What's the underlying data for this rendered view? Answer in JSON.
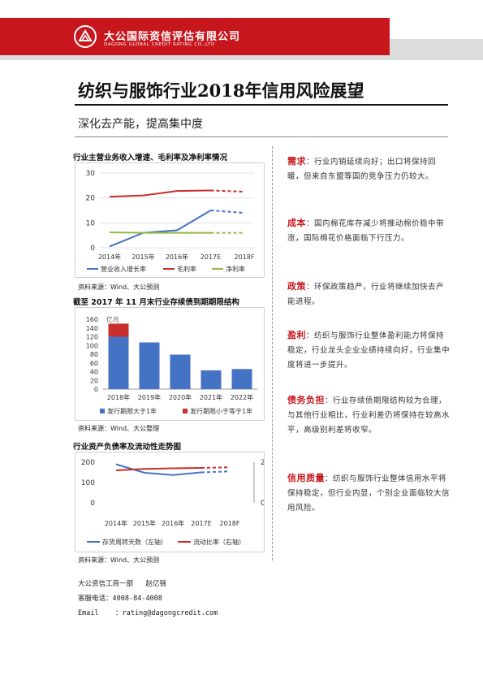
{
  "header": {
    "org_name_cn": "大公国际资信评估有限公司",
    "org_name_en": "DAGONG GLOBAL CREDIT RATING CO.,LTD",
    "brand_color": "#c8161d"
  },
  "title": "纺织与服饰行业2018年信用风险展望",
  "subtitle": "深化去产能，提高集中度",
  "charts": {
    "chart1_title": "行业主营业务收入增速、毛利率及净利率情况",
    "chart1_source": "资料来源：Wind、大公预测",
    "chart2_title": "截至 2017 年 11 月末行业存续债到期期限结构",
    "chart2_unit": "亿元",
    "chart2_source": "资料来源：Wind、大公整理",
    "chart3_title": "行业资产负债率及流动性走势图",
    "chart3_source": "资料来源：Wind、大公预测"
  },
  "chart_data": [
    {
      "type": "line",
      "title": "行业主营业务收入增速、毛利率及净利率情况",
      "categories": [
        "2014年",
        "2015年",
        "2016年",
        "2017E",
        "2018F"
      ],
      "ylim": [
        0,
        30
      ],
      "yticks": [
        "0",
        "10",
        "20",
        "30"
      ],
      "series": [
        {
          "name": "营业收入增长率",
          "values": [
            0.5,
            6,
            7,
            15,
            14
          ],
          "color": "#4472c4"
        },
        {
          "name": "毛利率",
          "values": [
            20.5,
            21,
            22.8,
            23,
            22.5
          ],
          "color": "#c9302c"
        },
        {
          "name": "净利率",
          "values": [
            6.2,
            6,
            6,
            6,
            6
          ],
          "color": "#8fbc3f"
        }
      ]
    },
    {
      "type": "bar",
      "title": "截至 2017 年 11 月末行业存续债到期期限结构",
      "categories": [
        "2018年",
        "2019年",
        "2020年",
        "2021年",
        "2022年"
      ],
      "ylim": [
        0,
        160
      ],
      "yticks": [
        "0",
        "20",
        "40",
        "60",
        "80",
        "100",
        "120",
        "140",
        "160"
      ],
      "series": [
        {
          "name": "发行期限大于1年",
          "values": [
            120,
            107,
            79,
            43,
            46
          ],
          "color": "#4472c4"
        },
        {
          "name": "发行期限小于等于1年",
          "values": [
            30,
            0,
            0,
            0,
            0
          ],
          "color": "#c9302c"
        }
      ]
    },
    {
      "type": "line",
      "title": "行业资产负债率及流动性走势图",
      "categories": [
        "2014年",
        "2015年",
        "2016年",
        "2017E",
        "2018F"
      ],
      "ylim_left": [
        0,
        200
      ],
      "yticks_left": [
        "0",
        "100",
        "200"
      ],
      "ylim_right": [
        0,
        2
      ],
      "yticks_right": [
        "0",
        "2"
      ],
      "series": [
        {
          "name": "存货周转天数（左轴）",
          "axis": "left",
          "values": [
            190,
            148,
            137,
            150,
            155
          ],
          "color": "#4472c4"
        },
        {
          "name": "流动比率（右轴）",
          "axis": "right",
          "values": [
            1.6,
            1.67,
            1.7,
            1.72,
            1.75
          ],
          "color": "#c9302c"
        }
      ]
    }
  ],
  "sidebar": [
    {
      "label": "需求",
      "text": "：行业内销延续向好；出口将保持回暖，但来自东盟等国的竞争压力仍较大。"
    },
    {
      "label": "成本",
      "text": "：国内棉花库存减少将推动棉价稳中带涨，国际棉花价格面临下行压力。"
    },
    {
      "label": "政策",
      "text": "：环保政策趋严，行业将继续加快去产能进程。"
    },
    {
      "label": "盈利",
      "text": "：纺织与服饰行业整体盈利能力将保持稳定，行业龙头企业业绩持续向好，行业集中度将进一步提升。"
    },
    {
      "label": "债务负担",
      "text": "：行业存续债期限结构较为合理，与其他行业相比，行业利差仍将保持在较高水平，高级别利差将收窄。"
    },
    {
      "label": "信用质量",
      "text": "：纺织与服饰行业整体信用水平将保持稳定，但行业内显，个别企业面临较大信用风险。"
    }
  ],
  "footer": {
    "dept": "大公资信工商一部   赵亿锦",
    "phone": "客服电话：4008-84-4008",
    "email": "Email    ：rating@dagongcredit.com"
  }
}
